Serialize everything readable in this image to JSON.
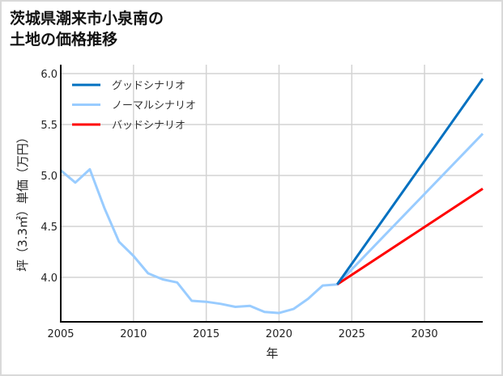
{
  "title_line1": "茨城県潮来市小泉南の",
  "title_line2": "土地の価格推移",
  "chart_data": {
    "type": "line",
    "title": "茨城県潮来市小泉南の土地の価格推移",
    "xlabel": "年",
    "ylabel": "坪（3.3㎡）単価（万円）",
    "xlim": [
      2005,
      2034
    ],
    "ylim": [
      3.55,
      6.05
    ],
    "x_ticks": [
      "2005",
      "2010",
      "2015",
      "2020",
      "2025",
      "2030"
    ],
    "y_ticks": [
      "4.0",
      "4.5",
      "5.0",
      "5.5",
      "6.0"
    ],
    "grid": true,
    "legend_position": "upper left",
    "series": [
      {
        "name": "グッドシナリオ",
        "color": "#0070c0",
        "x": [
          2024,
          2034
        ],
        "values": [
          3.93,
          5.95
        ]
      },
      {
        "name": "ノーマルシナリオ",
        "color": "#99ccff",
        "x": [
          2005,
          2006,
          2007,
          2008,
          2009,
          2010,
          2011,
          2012,
          2013,
          2014,
          2015,
          2016,
          2017,
          2018,
          2019,
          2020,
          2021,
          2022,
          2023,
          2024,
          2034
        ],
        "values": [
          5.05,
          4.93,
          5.06,
          4.68,
          4.35,
          4.21,
          4.04,
          3.98,
          3.95,
          3.77,
          3.76,
          3.74,
          3.71,
          3.72,
          3.66,
          3.65,
          3.69,
          3.79,
          3.92,
          3.93,
          5.41
        ]
      },
      {
        "name": "バッドシナリオ",
        "color": "#ff0000",
        "x": [
          2024,
          2034
        ],
        "values": [
          3.93,
          4.87
        ]
      }
    ]
  }
}
